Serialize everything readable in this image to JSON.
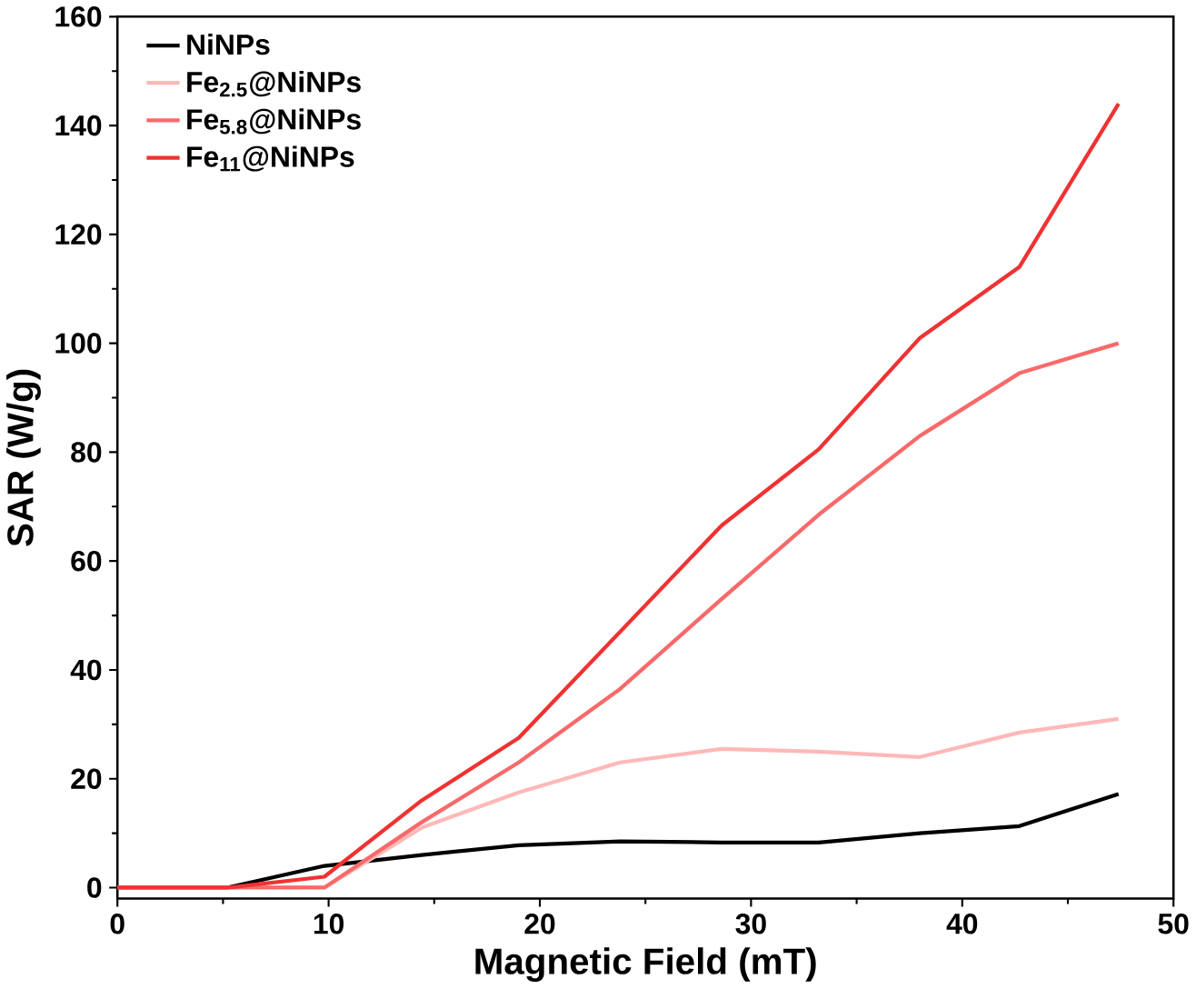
{
  "chart_data": {
    "type": "line",
    "xlabel": "Magnetic Field (mT)",
    "ylabel": "SAR (W/g)",
    "x": [
      0,
      5.2,
      9.8,
      14.4,
      19,
      23.8,
      28.6,
      33.2,
      38,
      42.7,
      47.4
    ],
    "series": [
      {
        "name": "NiNPs",
        "color": "#000000",
        "values": [
          0,
          0,
          4,
          6,
          7.8,
          8.5,
          8.3,
          8.3,
          10,
          11.3,
          17.2
        ]
      },
      {
        "name": "Fe$_{2.5}$@NiNPs",
        "color": "#ffb8b8",
        "values": [
          0,
          0,
          0,
          11,
          17.5,
          23,
          25.5,
          25,
          24,
          28.5,
          31
        ]
      },
      {
        "name": "Fe$_{5.8}$@NiNPs",
        "color": "#f86a6a",
        "values": [
          0,
          0,
          0,
          12,
          23,
          36.5,
          53,
          68.5,
          83,
          94.5,
          100
        ]
      },
      {
        "name": "Fe$_{11}$@NiNPs",
        "color": "#f03232",
        "values": [
          0,
          0,
          2,
          16,
          27.5,
          47,
          66.5,
          80.5,
          101,
          114,
          144
        ]
      }
    ],
    "xlim": [
      0,
      50
    ],
    "ylim": [
      -2,
      160
    ],
    "xticks": [
      0,
      10,
      20,
      30,
      40,
      50
    ],
    "yticks": [
      0,
      20,
      40,
      60,
      80,
      100,
      120,
      140,
      160
    ],
    "legend": "top left",
    "grid": false,
    "marker": "none",
    "line_style": "solid"
  }
}
